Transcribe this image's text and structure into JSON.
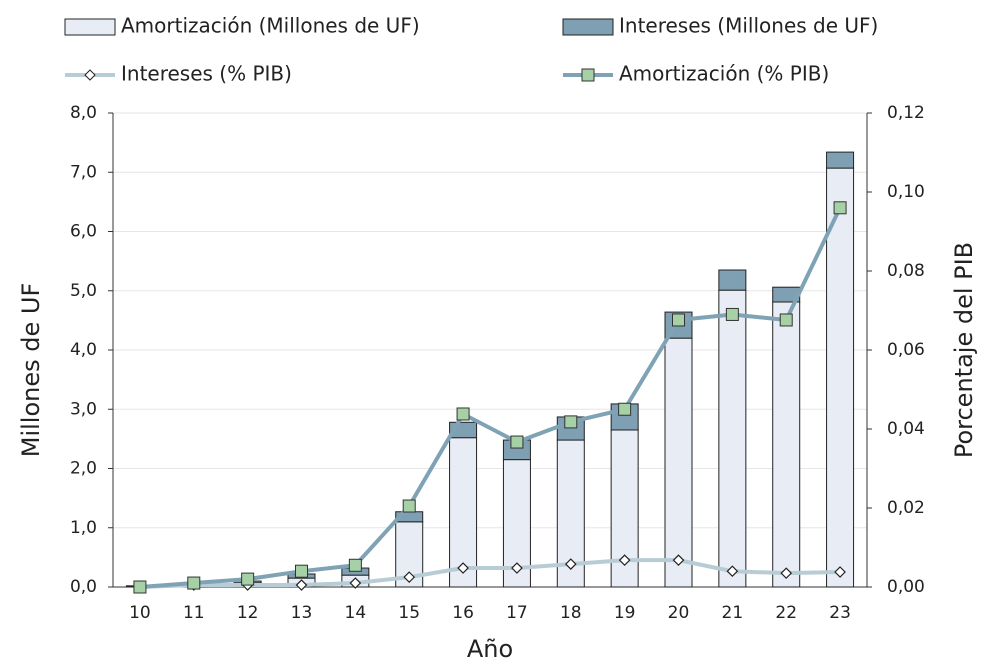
{
  "chart_data": {
    "type": "bar",
    "categories": [
      "10",
      "11",
      "12",
      "13",
      "14",
      "15",
      "16",
      "17",
      "18",
      "19",
      "20",
      "21",
      "22",
      "23"
    ],
    "x_label": "Año",
    "y_label": "Millones de UF",
    "y2_label": "Porcentaje del PIB",
    "ylim": [
      0,
      8
    ],
    "yticks": [
      {
        "value": 0,
        "label": "0,0"
      },
      {
        "value": 1,
        "label": "1,0"
      },
      {
        "value": 2,
        "label": "2,0"
      },
      {
        "value": 3,
        "label": "3,0"
      },
      {
        "value": 4,
        "label": "4,0"
      },
      {
        "value": 5,
        "label": "5,0"
      },
      {
        "value": 6,
        "label": "6,0"
      },
      {
        "value": 7,
        "label": "7,0"
      },
      {
        "value": 8,
        "label": "8,0"
      }
    ],
    "y2lim": [
      0,
      0.12
    ],
    "y2ticks": [
      {
        "value": 0,
        "label": "0,00"
      },
      {
        "value": 0.02,
        "label": "0,02"
      },
      {
        "value": 0.04,
        "label": "0,04"
      },
      {
        "value": 0.06,
        "label": "0,06"
      },
      {
        "value": 0.08,
        "label": "0,08"
      },
      {
        "value": 0.1,
        "label": "0,10"
      },
      {
        "value": 0.12,
        "label": "0,12"
      }
    ],
    "grid": true,
    "series": [
      {
        "name": "Amortización (Millones de UF)",
        "type": "bar",
        "color": "#e8edf5",
        "values": [
          0.01,
          0.03,
          0.07,
          0.15,
          0.2,
          1.1,
          2.52,
          2.15,
          2.48,
          2.65,
          4.2,
          5.01,
          4.81,
          7.07
        ]
      },
      {
        "name": "Intereses (Millones de UF)",
        "type": "bar",
        "color": "#7f9fb3",
        "values": [
          0.01,
          0.02,
          0.03,
          0.07,
          0.12,
          0.17,
          0.26,
          0.33,
          0.39,
          0.44,
          0.44,
          0.34,
          0.25,
          0.27
        ]
      },
      {
        "name": "Intereses (% PIB)",
        "type": "line",
        "axis": "y2",
        "color": "#b8ccd6",
        "marker": "diamond",
        "marker_color": "#ffffff",
        "values": [
          0,
          0.0005,
          0.0005,
          0.0005,
          0.001,
          0.0025,
          0.0048,
          0.0048,
          0.0058,
          0.0068,
          0.0068,
          0.004,
          0.0035,
          0.0038
        ]
      },
      {
        "name": "Amortización (% PIB)",
        "type": "line",
        "axis": "y2",
        "color": "#7fa3b5",
        "marker": "square",
        "marker_color": "#a6d0a6",
        "values": [
          0,
          0.001,
          0.002,
          0.004,
          0.0055,
          0.0205,
          0.0438,
          0.0367,
          0.0418,
          0.045,
          0.0676,
          0.069,
          0.0676,
          0.096
        ]
      }
    ]
  }
}
